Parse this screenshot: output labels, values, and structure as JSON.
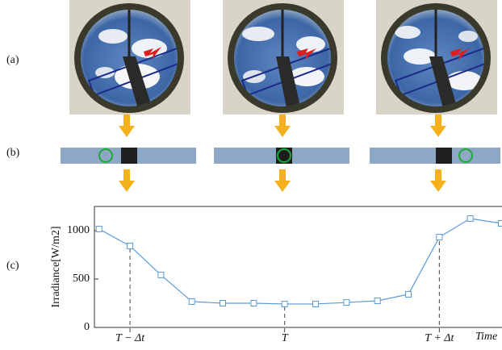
{
  "panel_labels": [
    "(a)",
    "(b)",
    "(c)"
  ],
  "chart_data": {
    "type": "line",
    "ylabel": "Irradiance[W/m2]",
    "xlabel": "Time",
    "x": [
      1,
      2,
      3,
      4,
      5,
      6,
      7,
      8,
      9,
      10,
      11,
      12,
      13,
      14
    ],
    "series": [
      {
        "color": "#5b9bd5",
        "values": [
          1017,
          842,
          542,
          267,
          250,
          250,
          242,
          242,
          258,
          275,
          342,
          933,
          1125,
          1075
        ]
      }
    ],
    "xlim": [
      0.85,
      14
    ],
    "ylim": [
      0,
      1250
    ],
    "xticks": [
      {
        "value": 2,
        "label": "T − Δt"
      },
      {
        "value": 7,
        "label": "T"
      },
      {
        "value": 12,
        "label": "T + Δt"
      }
    ],
    "yticks": [
      0,
      500,
      1000
    ]
  }
}
